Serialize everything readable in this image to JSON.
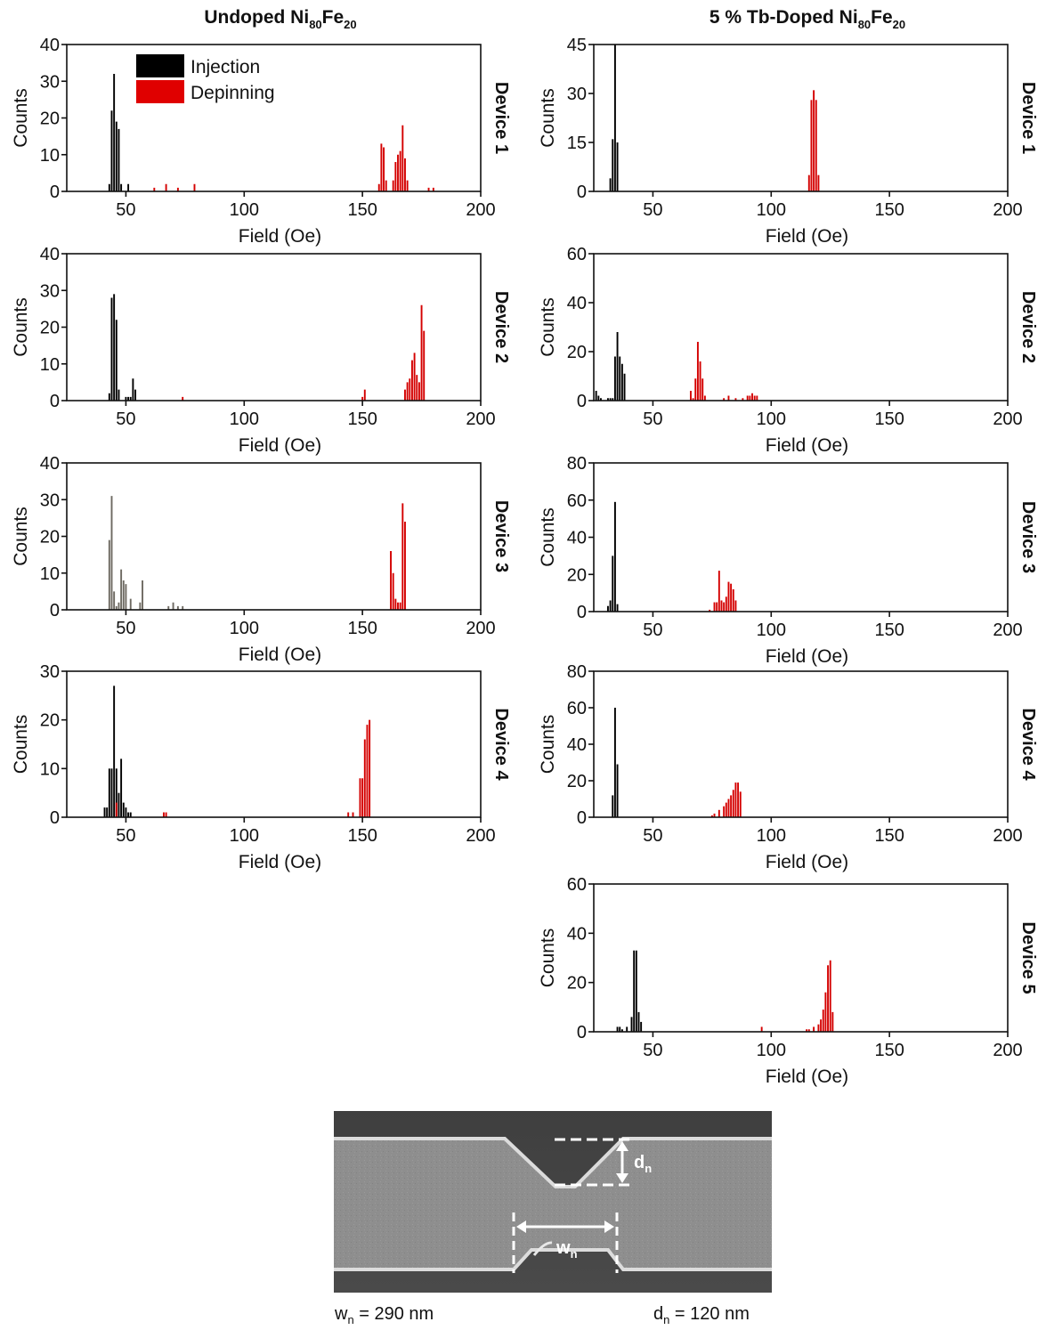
{
  "columns": {
    "left": {
      "base": "Undoped Ni",
      "sub1": "80",
      "mid": "Fe",
      "sub2": "20"
    },
    "right": {
      "base": "5 % Tb-Doped Ni",
      "sub1": "80",
      "mid": "Fe",
      "sub2": "20"
    }
  },
  "legend": {
    "items": [
      {
        "label": "Injection",
        "color": "#000000"
      },
      {
        "label": "Depinning",
        "color": "#e00000"
      }
    ]
  },
  "colors": {
    "injection": "#000000",
    "depinning": "#d40000",
    "injection_device3_left": "#6e6a62"
  },
  "chart_data": [
    {
      "type": "bar",
      "column": "Undoped Ni80Fe20",
      "device_label": "Device 1",
      "xlabel": "Field (Oe)",
      "ylabel": "Counts",
      "xlim": [
        25,
        200
      ],
      "ylim": [
        0,
        40
      ],
      "xticks": [
        50,
        100,
        150,
        200
      ],
      "yticks": [
        0,
        10,
        20,
        30,
        40
      ],
      "series": [
        {
          "name": "Injection",
          "points": [
            [
              43,
              2
            ],
            [
              44,
              22
            ],
            [
              45,
              32
            ],
            [
              46,
              19
            ],
            [
              47,
              17
            ],
            [
              48,
              2
            ],
            [
              51,
              2
            ]
          ]
        },
        {
          "name": "Depinning",
          "points": [
            [
              62,
              1
            ],
            [
              67,
              2
            ],
            [
              72,
              1
            ],
            [
              79,
              2
            ],
            [
              157,
              2
            ],
            [
              158,
              13
            ],
            [
              159,
              12
            ],
            [
              160,
              3
            ],
            [
              163,
              3
            ],
            [
              164,
              8
            ],
            [
              165,
              10
            ],
            [
              166,
              11
            ],
            [
              167,
              18
            ],
            [
              168,
              9
            ],
            [
              169,
              3
            ],
            [
              178,
              1
            ],
            [
              180,
              1
            ]
          ]
        }
      ]
    },
    {
      "type": "bar",
      "column": "Undoped Ni80Fe20",
      "device_label": "Device 2",
      "xlabel": "Field (Oe)",
      "ylabel": "Counts",
      "xlim": [
        25,
        200
      ],
      "ylim": [
        0,
        40
      ],
      "xticks": [
        50,
        100,
        150,
        200
      ],
      "yticks": [
        0,
        10,
        20,
        30,
        40
      ],
      "series": [
        {
          "name": "Injection",
          "points": [
            [
              43,
              2
            ],
            [
              44,
              28
            ],
            [
              45,
              29
            ],
            [
              46,
              22
            ],
            [
              47,
              3
            ],
            [
              50,
              1
            ],
            [
              51,
              1
            ],
            [
              52,
              1
            ],
            [
              53,
              6
            ],
            [
              54,
              3
            ]
          ]
        },
        {
          "name": "Depinning",
          "points": [
            [
              74,
              1
            ],
            [
              150,
              1
            ],
            [
              151,
              3
            ],
            [
              168,
              3
            ],
            [
              169,
              5
            ],
            [
              170,
              6
            ],
            [
              171,
              11
            ],
            [
              172,
              13
            ],
            [
              173,
              7
            ],
            [
              174,
              5
            ],
            [
              175,
              26
            ],
            [
              176,
              19
            ]
          ]
        }
      ]
    },
    {
      "type": "bar",
      "column": "Undoped Ni80Fe20",
      "device_label": "Device 3",
      "xlabel": "Field (Oe)",
      "ylabel": "Counts",
      "xlim": [
        25,
        200
      ],
      "ylim": [
        0,
        40
      ],
      "xticks": [
        50,
        100,
        150,
        200
      ],
      "yticks": [
        0,
        10,
        20,
        30,
        40
      ],
      "series": [
        {
          "name": "Injection",
          "points": [
            [
              43,
              19
            ],
            [
              44,
              31
            ],
            [
              45,
              5
            ],
            [
              46,
              1
            ],
            [
              47,
              2
            ],
            [
              48,
              11
            ],
            [
              49,
              8
            ],
            [
              50,
              7
            ],
            [
              52,
              3
            ],
            [
              56,
              2
            ],
            [
              57,
              8
            ],
            [
              68,
              1
            ],
            [
              70,
              2
            ],
            [
              72,
              1
            ],
            [
              74,
              1
            ]
          ]
        },
        {
          "name": "Depinning",
          "points": [
            [
              162,
              16
            ],
            [
              163,
              10
            ],
            [
              164,
              3
            ],
            [
              165,
              2
            ],
            [
              166,
              2
            ],
            [
              167,
              29
            ],
            [
              168,
              24
            ]
          ]
        }
      ]
    },
    {
      "type": "bar",
      "column": "Undoped Ni80Fe20",
      "device_label": "Device 4",
      "xlabel": "Field (Oe)",
      "ylabel": "Counts",
      "xlim": [
        25,
        200
      ],
      "ylim": [
        0,
        30
      ],
      "xticks": [
        50,
        100,
        150,
        200
      ],
      "yticks": [
        0,
        10,
        20,
        30
      ],
      "series": [
        {
          "name": "Injection",
          "points": [
            [
              41,
              2
            ],
            [
              42,
              2
            ],
            [
              43,
              10
            ],
            [
              44,
              10
            ],
            [
              45,
              27
            ],
            [
              46,
              10
            ],
            [
              47,
              5
            ],
            [
              48,
              12
            ],
            [
              49,
              3
            ],
            [
              50,
              2
            ],
            [
              51,
              1
            ],
            [
              52,
              1
            ]
          ]
        },
        {
          "name": "Depinning",
          "points": [
            [
              46,
              3
            ],
            [
              66,
              1
            ],
            [
              67,
              1
            ],
            [
              144,
              1
            ],
            [
              146,
              1
            ],
            [
              149,
              8
            ],
            [
              150,
              8
            ],
            [
              151,
              16
            ],
            [
              152,
              19
            ],
            [
              153,
              20
            ]
          ]
        }
      ]
    },
    {
      "type": "bar",
      "column": "5 % Tb-Doped Ni80Fe20",
      "device_label": "Device 1",
      "xlabel": "Field (Oe)",
      "ylabel": "Counts",
      "xlim": [
        25,
        200
      ],
      "ylim": [
        0,
        45
      ],
      "xticks": [
        50,
        100,
        150,
        200
      ],
      "yticks": [
        0,
        15,
        30,
        45
      ],
      "series": [
        {
          "name": "Injection",
          "points": [
            [
              32,
              4
            ],
            [
              33,
              16
            ],
            [
              34,
              45
            ],
            [
              35,
              15
            ]
          ]
        },
        {
          "name": "Depinning",
          "points": [
            [
              116,
              5
            ],
            [
              117,
              28
            ],
            [
              118,
              31
            ],
            [
              119,
              28
            ],
            [
              120,
              5
            ]
          ]
        }
      ]
    },
    {
      "type": "bar",
      "column": "5 % Tb-Doped Ni80Fe20",
      "device_label": "Device 2",
      "xlabel": "Field (Oe)",
      "ylabel": "Counts",
      "xlim": [
        25,
        200
      ],
      "ylim": [
        0,
        60
      ],
      "xticks": [
        50,
        100,
        150,
        200
      ],
      "yticks": [
        0,
        20,
        40,
        60
      ],
      "series": [
        {
          "name": "Injection",
          "points": [
            [
              26,
              4
            ],
            [
              27,
              2
            ],
            [
              28,
              1
            ],
            [
              31,
              1
            ],
            [
              32,
              1
            ],
            [
              33,
              1
            ],
            [
              34,
              18
            ],
            [
              35,
              28
            ],
            [
              36,
              18
            ],
            [
              37,
              15
            ],
            [
              38,
              11
            ]
          ]
        },
        {
          "name": "Depinning",
          "points": [
            [
              66,
              4
            ],
            [
              67,
              1
            ],
            [
              68,
              9
            ],
            [
              69,
              24
            ],
            [
              70,
              16
            ],
            [
              71,
              9
            ],
            [
              72,
              2
            ],
            [
              80,
              1
            ],
            [
              82,
              2
            ],
            [
              85,
              1
            ],
            [
              88,
              1
            ],
            [
              90,
              2
            ],
            [
              91,
              2
            ],
            [
              92,
              3
            ],
            [
              93,
              2
            ],
            [
              94,
              2
            ]
          ]
        }
      ]
    },
    {
      "type": "bar",
      "column": "5 % Tb-Doped Ni80Fe20",
      "device_label": "Device 3",
      "xlabel": "Field (Oe)",
      "ylabel": "Counts",
      "xlim": [
        25,
        200
      ],
      "ylim": [
        0,
        80
      ],
      "xticks": [
        50,
        100,
        150,
        200
      ],
      "yticks": [
        0,
        20,
        40,
        60,
        80
      ],
      "series": [
        {
          "name": "Injection",
          "points": [
            [
              31,
              3
            ],
            [
              32,
              6
            ],
            [
              33,
              30
            ],
            [
              34,
              59
            ],
            [
              35,
              4
            ]
          ]
        },
        {
          "name": "Depinning",
          "points": [
            [
              74,
              1
            ],
            [
              76,
              5
            ],
            [
              77,
              5
            ],
            [
              78,
              22
            ],
            [
              79,
              6
            ],
            [
              80,
              5
            ],
            [
              81,
              8
            ],
            [
              82,
              16
            ],
            [
              83,
              15
            ],
            [
              84,
              12
            ],
            [
              85,
              6
            ]
          ]
        }
      ]
    },
    {
      "type": "bar",
      "column": "5 % Tb-Doped Ni80Fe20",
      "device_label": "Device 4",
      "xlabel": "Field (Oe)",
      "ylabel": "Counts",
      "xlim": [
        25,
        200
      ],
      "ylim": [
        0,
        80
      ],
      "xticks": [
        50,
        100,
        150,
        200
      ],
      "yticks": [
        0,
        20,
        40,
        60,
        80
      ],
      "series": [
        {
          "name": "Injection",
          "points": [
            [
              33,
              12
            ],
            [
              34,
              60
            ],
            [
              35,
              29
            ]
          ]
        },
        {
          "name": "Depinning",
          "points": [
            [
              75,
              1
            ],
            [
              76,
              2
            ],
            [
              78,
              4
            ],
            [
              80,
              6
            ],
            [
              81,
              8
            ],
            [
              82,
              10
            ],
            [
              83,
              12
            ],
            [
              84,
              15
            ],
            [
              85,
              19
            ],
            [
              86,
              19
            ],
            [
              87,
              14
            ]
          ]
        }
      ]
    },
    {
      "type": "bar",
      "column": "5 % Tb-Doped Ni80Fe20",
      "device_label": "Device 5",
      "xlabel": "Field (Oe)",
      "ylabel": "Counts",
      "xlim": [
        25,
        200
      ],
      "ylim": [
        0,
        60
      ],
      "xticks": [
        50,
        100,
        150,
        200
      ],
      "yticks": [
        0,
        20,
        40,
        60
      ],
      "series": [
        {
          "name": "Injection",
          "points": [
            [
              35,
              2
            ],
            [
              36,
              2
            ],
            [
              37,
              1
            ],
            [
              39,
              2
            ],
            [
              41,
              6
            ],
            [
              42,
              33
            ],
            [
              43,
              33
            ],
            [
              44,
              8
            ],
            [
              45,
              4
            ]
          ]
        },
        {
          "name": "Depinning",
          "points": [
            [
              96,
              2
            ],
            [
              115,
              1
            ],
            [
              116,
              1
            ],
            [
              118,
              2
            ],
            [
              120,
              3
            ],
            [
              121,
              5
            ],
            [
              122,
              9
            ],
            [
              123,
              16
            ],
            [
              124,
              27
            ],
            [
              125,
              29
            ],
            [
              126,
              8
            ]
          ]
        }
      ]
    }
  ],
  "micrograph": {
    "labels": {
      "dn": {
        "base": "d",
        "sub": "n"
      },
      "wn": {
        "base": "w",
        "sub": "n"
      }
    },
    "captions": {
      "wn": {
        "base": "w",
        "sub": "n",
        "rest": " = 290 nm"
      },
      "dn": {
        "base": "d",
        "sub": "n",
        "rest": " = 120 nm"
      }
    }
  }
}
